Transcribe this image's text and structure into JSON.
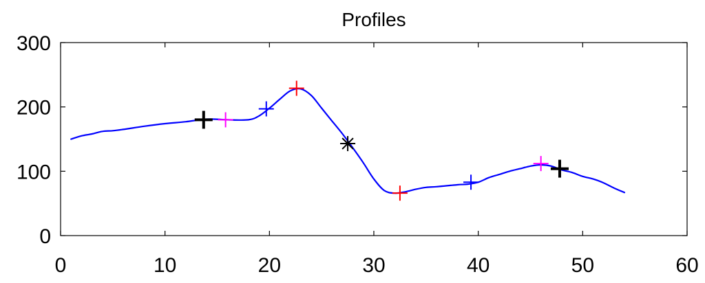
{
  "chart_data": {
    "type": "line",
    "title": "Profiles",
    "xlabel": "",
    "ylabel": "",
    "xlim": [
      0,
      60
    ],
    "ylim": [
      0,
      300
    ],
    "xticks": [
      0,
      10,
      20,
      30,
      40,
      50,
      60
    ],
    "yticks": [
      0,
      100,
      200,
      300
    ],
    "grid": false,
    "series": [
      {
        "color": "#0000ff",
        "x": [
          1,
          2,
          3,
          4,
          5,
          6,
          8,
          10,
          12,
          14,
          16,
          18,
          19,
          20,
          21,
          22,
          23,
          24,
          25,
          26,
          27,
          28,
          29,
          30,
          31,
          32,
          33,
          34,
          35,
          36,
          38,
          39,
          40,
          41,
          42,
          43,
          44,
          45,
          46,
          47,
          48,
          49,
          50,
          51,
          52,
          53,
          54
        ],
        "y": [
          150,
          155,
          158,
          162,
          163,
          165,
          170,
          174,
          177,
          181,
          180,
          180,
          186,
          198,
          212,
          225,
          228,
          218,
          198,
          178,
          158,
          136,
          113,
          88,
          70,
          66,
          68,
          72,
          75,
          76,
          79,
          80,
          83,
          90,
          95,
          100,
          104,
          108,
          110,
          108,
          102,
          98,
          92,
          88,
          82,
          74,
          67
        ]
      }
    ],
    "markers": [
      {
        "x": 13.7,
        "y": 180,
        "symbol": "+",
        "color": "#000000",
        "size": "large"
      },
      {
        "x": 15.8,
        "y": 180,
        "symbol": "+",
        "color": "#ff00ff",
        "size": "normal"
      },
      {
        "x": 19.7,
        "y": 197,
        "symbol": "+",
        "color": "#0000ff",
        "size": "normal"
      },
      {
        "x": 22.6,
        "y": 229,
        "symbol": "+",
        "color": "#ff0000",
        "size": "normal"
      },
      {
        "x": 27.5,
        "y": 143,
        "symbol": "*",
        "color": "#000000",
        "size": "normal"
      },
      {
        "x": 32.5,
        "y": 66,
        "symbol": "+",
        "color": "#ff0000",
        "size": "normal"
      },
      {
        "x": 39.3,
        "y": 83,
        "symbol": "+",
        "color": "#0000ff",
        "size": "normal"
      },
      {
        "x": 46,
        "y": 112,
        "symbol": "+",
        "color": "#ff00ff",
        "size": "normal"
      },
      {
        "x": 47.8,
        "y": 104,
        "symbol": "+",
        "color": "#000000",
        "size": "large"
      }
    ]
  }
}
